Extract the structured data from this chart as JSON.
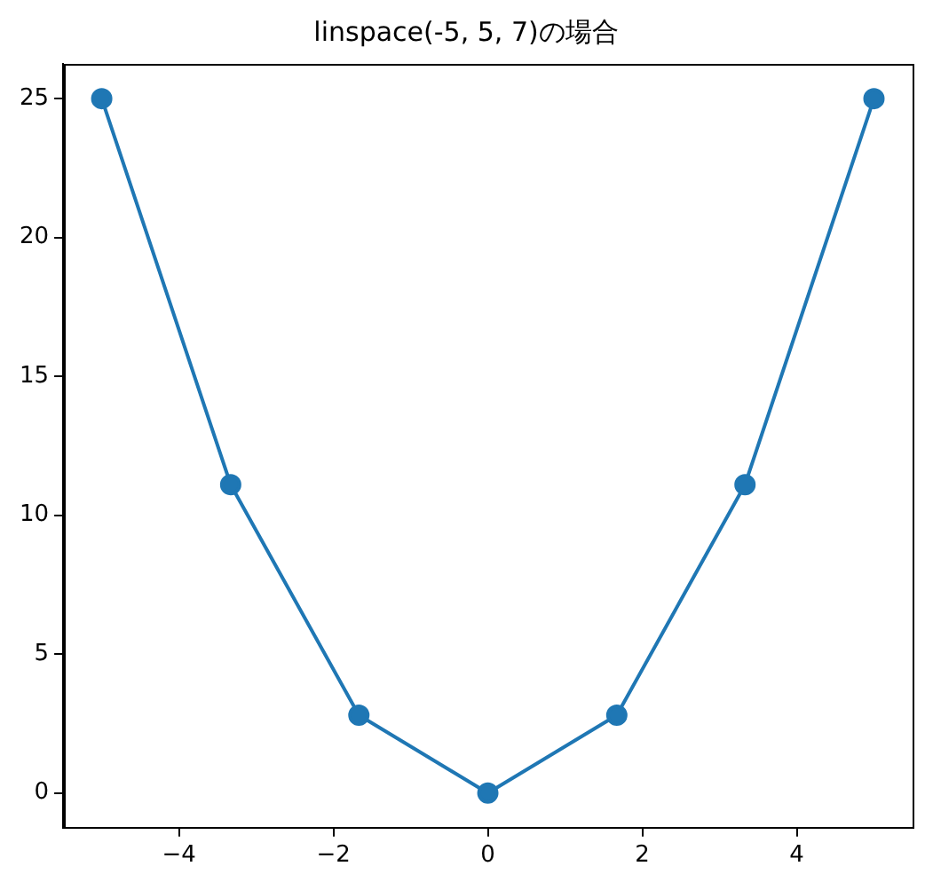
{
  "chart_data": {
    "type": "line",
    "title": "linspace(-5, 5, 7)の場合",
    "x": [
      -5,
      -3.33,
      -1.67,
      0,
      1.67,
      3.33,
      5
    ],
    "series": [
      {
        "color": "#1f77b4",
        "values": [
          25,
          11.1,
          2.8,
          0,
          2.8,
          11.1,
          25
        ]
      }
    ],
    "xlim": [
      -5.5,
      5.5
    ],
    "xticks": [
      {
        "value": -4,
        "label": "−4"
      },
      {
        "value": -2,
        "label": "−2"
      },
      0,
      2,
      4
    ],
    "ylim": [
      -1.25,
      26.25
    ],
    "yticks": [
      0,
      5,
      10,
      15,
      20,
      25
    ],
    "grid": false,
    "legend": false,
    "marker": "circle",
    "line_style": "solid"
  }
}
